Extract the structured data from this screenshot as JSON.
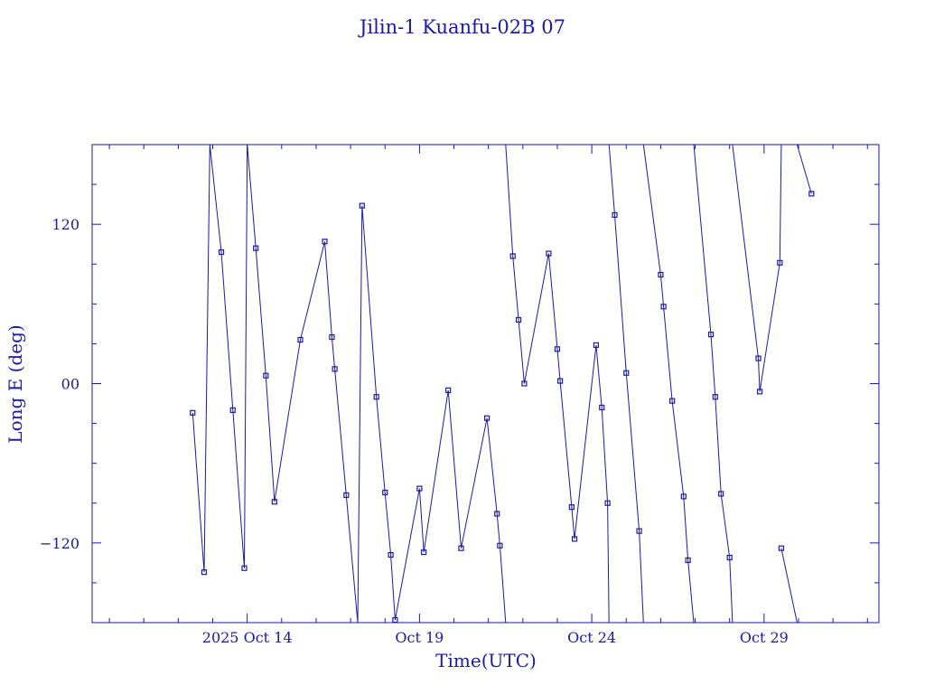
{
  "chart_data": {
    "type": "line",
    "title": "Jilin-1 Kuanfu-02B 07",
    "xlabel": "Time(UTC)",
    "ylabel": "Long E (deg)",
    "color": "#1a1aa6",
    "x_axis": {
      "unit": "day",
      "range": [
        "2025-10-09T12:00",
        "2025-11-01T08:00"
      ],
      "tick_labels": [
        {
          "label": "2025 Oct 14",
          "date": "2025-10-14"
        },
        {
          "label": "Oct 19",
          "date": "2025-10-19"
        },
        {
          "label": "Oct 24",
          "date": "2025-10-24"
        },
        {
          "label": "Oct 29",
          "date": "2025-10-29"
        }
      ]
    },
    "y_axis": {
      "range": [
        -180,
        180
      ],
      "tick_labels": [
        {
          "label": "−120",
          "value": -120
        },
        {
          "label": "00",
          "value": 0
        },
        {
          "label": "120",
          "value": 120
        }
      ]
    },
    "grid": false,
    "series": [
      {
        "points": [
          [
            "2025-10-12T10:00",
            -22
          ],
          [
            "2025-10-12T18:00",
            -142
          ],
          [
            "2025-10-12T22:00",
            180
          ],
          [
            "2025-10-13T06:00",
            99
          ],
          [
            "2025-10-13T14:00",
            -20
          ],
          [
            "2025-10-13T22:00",
            -139
          ],
          [
            "2025-10-14T00:00",
            180
          ],
          [
            "2025-10-14T06:00",
            102
          ],
          [
            "2025-10-14T13:00",
            6
          ],
          [
            "2025-10-14T19:00",
            -89
          ],
          [
            "2025-10-15T13:00",
            33
          ],
          [
            "2025-10-16T06:00",
            107
          ],
          [
            "2025-10-16T11:00",
            35
          ],
          [
            "2025-10-16T13:00",
            11
          ],
          [
            "2025-10-16T21:00",
            -84
          ],
          [
            "2025-10-17T05:00",
            -180
          ],
          [
            "2025-10-17T08:00",
            134
          ],
          [
            "2025-10-17T18:00",
            -10
          ],
          [
            "2025-10-18T00:00",
            -82
          ],
          [
            "2025-10-18T04:00",
            -129
          ],
          [
            "2025-10-18T07:00",
            -178
          ],
          [
            "2025-10-19T00:00",
            -79
          ],
          [
            "2025-10-19T03:00",
            -127
          ],
          [
            "2025-10-19T20:00",
            -5
          ],
          [
            "2025-10-20T05:00",
            -124
          ],
          [
            "2025-10-20T23:00",
            -26
          ],
          [
            "2025-10-21T06:00",
            -98
          ],
          [
            "2025-10-21T08:00",
            -122
          ],
          [
            "2025-10-21T12:00",
            -180
          ],
          [
            "2025-10-21T12:00",
            180
          ],
          [
            "2025-10-21T17:00",
            96
          ],
          [
            "2025-10-21T21:00",
            48
          ],
          [
            "2025-10-22T01:00",
            0
          ],
          [
            "2025-10-22T18:00",
            98
          ],
          [
            "2025-10-23T00:00",
            26
          ],
          [
            "2025-10-23T02:00",
            2
          ],
          [
            "2025-10-23T10:00",
            -93
          ],
          [
            "2025-10-23T12:00",
            -117
          ],
          [
            "2025-10-24T03:00",
            29
          ],
          [
            "2025-10-24T07:00",
            -18
          ],
          [
            "2025-10-24T11:00",
            -90
          ],
          [
            "2025-10-24T12:00",
            -180
          ],
          [
            "2025-10-24T12:00",
            180
          ],
          [
            "2025-10-24T16:00",
            127
          ],
          [
            "2025-10-25T00:00",
            8
          ],
          [
            "2025-10-25T09:00",
            -111
          ],
          [
            "2025-10-25T12:00",
            -180
          ],
          [
            "2025-10-25T12:00",
            180
          ],
          [
            "2025-10-26T00:00",
            82
          ],
          [
            "2025-10-26T02:00",
            58
          ],
          [
            "2025-10-26T08:00",
            -13
          ],
          [
            "2025-10-26T16:00",
            -85
          ],
          [
            "2025-10-26T19:00",
            -133
          ],
          [
            "2025-10-26T23:00",
            -180
          ],
          [
            "2025-10-26T23:00",
            180
          ],
          [
            "2025-10-27T11:00",
            37
          ],
          [
            "2025-10-27T14:00",
            -10
          ],
          [
            "2025-10-27T18:00",
            -83
          ],
          [
            "2025-10-28T00:00",
            -131
          ],
          [
            "2025-10-28T02:00",
            -180
          ],
          [
            "2025-10-28T02:00",
            180
          ],
          [
            "2025-10-28T20:00",
            19
          ],
          [
            "2025-10-28T21:00",
            -6
          ],
          [
            "2025-10-29T11:00",
            91
          ],
          [
            "2025-10-29T12:00",
            180
          ],
          [
            "2025-10-29T12:00",
            -124
          ],
          [
            "2025-10-29T23:00",
            -180
          ],
          [
            "2025-10-29T23:00",
            180
          ],
          [
            "2025-10-30T09:00",
            143
          ]
        ]
      },
      {
        "points": [
          [
            "2025-10-12T22:00",
            180
          ],
          [
            "2025-10-13T22:00",
            -139
          ]
        ]
      },
      {
        "points": [
          [
            "2025-10-13T00:00",
            -180
          ],
          [
            "2025-10-13T00:00",
            -180
          ]
        ]
      },
      {
        "points": [
          [
            "2025-10-13T21:00",
            180
          ],
          [
            "2025-10-14T00:00",
            180
          ]
        ]
      },
      {
        "points": [
          [
            "2025-10-13T16:00",
            180
          ],
          [
            "2025-10-14T06:00",
            102
          ]
        ]
      },
      {
        "points": [
          [
            "2025-10-26T22:00",
            180
          ],
          [
            "2025-10-27T02:00",
            155
          ]
        ]
      },
      {
        "points": [
          [
            "2025-10-27T22:00",
            180
          ],
          [
            "2025-10-28T00:00",
            160
          ]
        ]
      },
      {
        "points": [
          [
            "2025-10-25T12:00",
            180
          ],
          [
            "2025-10-26T00:00",
            154
          ],
          [
            "2025-10-26T08:00",
            -13
          ]
        ]
      }
    ]
  }
}
